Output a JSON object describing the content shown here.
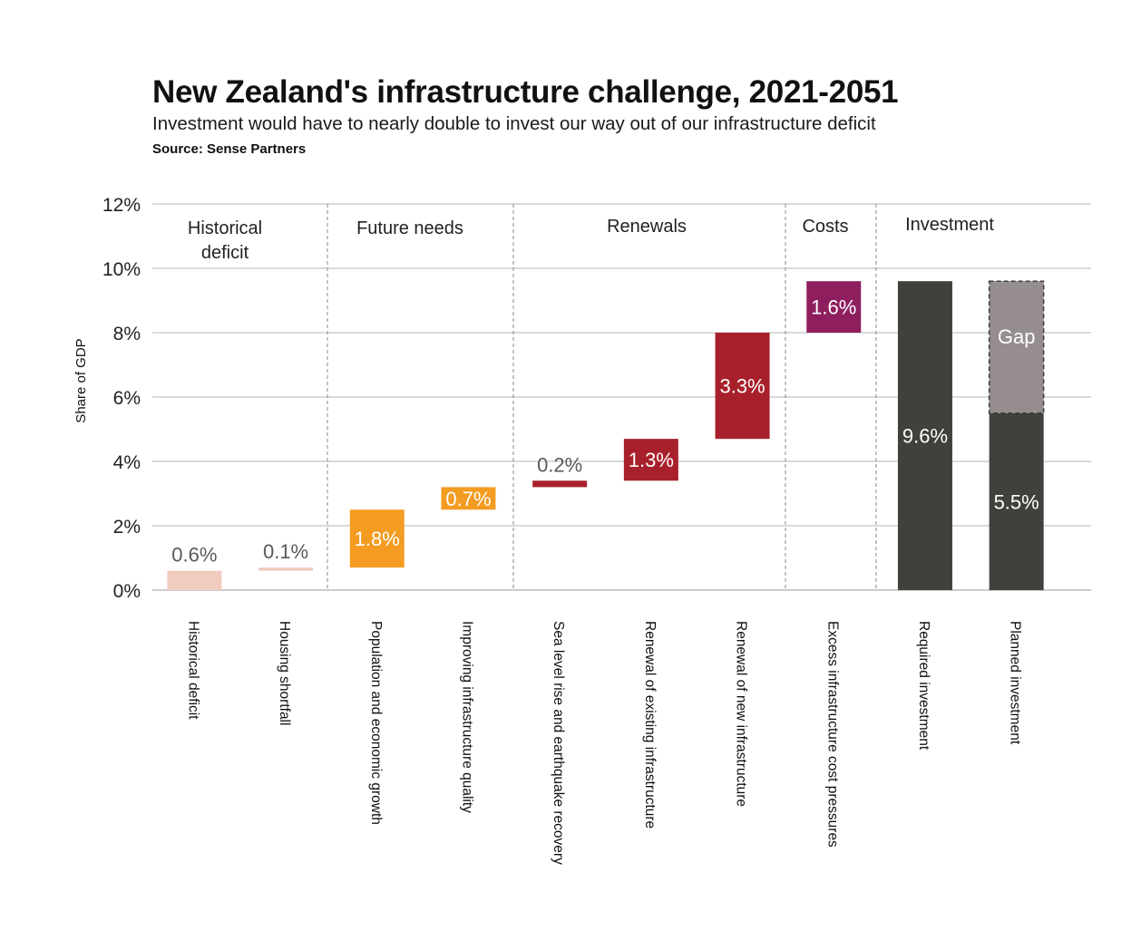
{
  "header": {
    "title": "New Zealand's infrastructure challenge, 2021-2051",
    "subtitle": "Investment would have to nearly double to invest our way out of our infrastructure deficit",
    "source": "Source: Sense Partners"
  },
  "chart_data": {
    "type": "bar",
    "subtype": "waterfall",
    "ylabel": "Share of GDP",
    "ylim": [
      0,
      12
    ],
    "yticks": [
      "0%",
      "2%",
      "4%",
      "6%",
      "8%",
      "10%",
      "12%"
    ],
    "grid": true,
    "groups": [
      {
        "label": "Historical deficit",
        "lines": [
          "Historical",
          "deficit"
        ]
      },
      {
        "label": "Future needs",
        "lines": [
          "Future needs"
        ]
      },
      {
        "label": "Renewals",
        "lines": [
          "Renewals"
        ]
      },
      {
        "label": "Costs",
        "lines": [
          "Costs"
        ]
      },
      {
        "label": "Investment",
        "lines": [
          "Investment"
        ]
      }
    ],
    "bars": [
      {
        "category": "Historical deficit",
        "group": 0,
        "start": 0,
        "end": 0.6,
        "label": "0.6%",
        "color": "#f2cbbf",
        "label_color": "#595959",
        "label_pos": "above"
      },
      {
        "category": "Housing shortfall",
        "group": 0,
        "start": 0.6,
        "end": 0.7,
        "label": "0.1%",
        "color": "#f2cbbf",
        "label_color": "#595959",
        "label_pos": "above"
      },
      {
        "category": "Population and economic growth",
        "group": 1,
        "start": 0.7,
        "end": 2.5,
        "label": "1.8%",
        "color": "#f39c21",
        "label_color": "#ffffff",
        "label_pos": "inside"
      },
      {
        "category": "Improving infrastructure quality",
        "group": 1,
        "start": 2.5,
        "end": 3.2,
        "label": "0.7%",
        "color": "#f39c21",
        "label_color": "#ffffff",
        "label_pos": "inside"
      },
      {
        "category": "Sea level rise and earthquake recovery",
        "group": 2,
        "start": 3.2,
        "end": 3.4,
        "label": "0.2%",
        "color": "#a8202b",
        "label_color": "#595959",
        "label_pos": "above"
      },
      {
        "category": "Renewal of existing infrastructure",
        "group": 2,
        "start": 3.4,
        "end": 4.7,
        "label": "1.3%",
        "color": "#a8202b",
        "label_color": "#ffffff",
        "label_pos": "inside"
      },
      {
        "category": "Renewal of new infrastructure",
        "group": 2,
        "start": 4.7,
        "end": 8.0,
        "label": "3.3%",
        "color": "#a8202b",
        "label_color": "#ffffff",
        "label_pos": "inside"
      },
      {
        "category": "Excess infrastructure cost pressures",
        "group": 3,
        "start": 8.0,
        "end": 9.6,
        "label": "1.6%",
        "color": "#8f1e5f",
        "label_color": "#ffffff",
        "label_pos": "inside"
      },
      {
        "category": "Required investment",
        "group": 4,
        "start": 0,
        "end": 9.6,
        "label": "9.6%",
        "color": "#41403c",
        "label_color": "#ffffff",
        "label_pos": "inside"
      },
      {
        "category": "Planned investment",
        "group": 4,
        "start": 0,
        "end": 5.5,
        "label": "5.5%",
        "color": "#41403c",
        "label_color": "#ffffff",
        "label_pos": "inside",
        "gap": {
          "start": 5.5,
          "end": 9.6,
          "label": "Gap",
          "color": "#958d8e"
        }
      }
    ]
  }
}
